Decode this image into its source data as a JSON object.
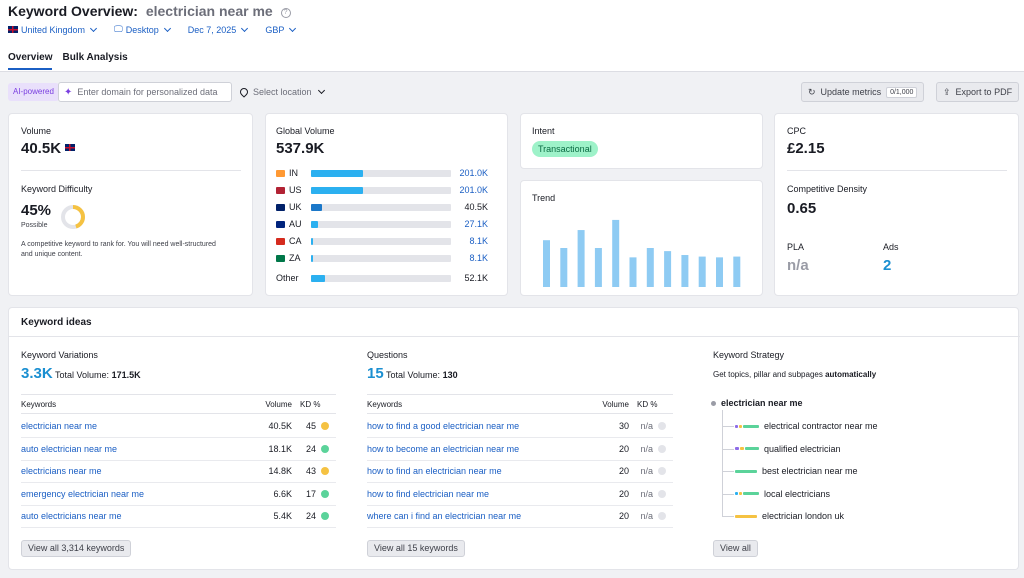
{
  "header": {
    "title": "Keyword Overview:",
    "keyword": "electrician near me",
    "filters": [
      "United Kingdom",
      "Desktop",
      "Dec 7, 2025",
      "GBP"
    ],
    "tabs": [
      "Overview",
      "Bulk Analysis"
    ]
  },
  "toolbar": {
    "ai_badge": "AI-powered",
    "domain_placeholder": "Enter domain for personalized data",
    "location_placeholder": "Select location",
    "update_label": "Update metrics",
    "update_counter": "0/1,000",
    "export_label": "Export to PDF"
  },
  "volume": {
    "label": "Volume",
    "value": "40.5K"
  },
  "difficulty": {
    "label": "Keyword Difficulty",
    "value": "45%",
    "level": "Possible",
    "percent": 45,
    "description": "A competitive keyword to rank for. You will need well-structured and unique content."
  },
  "global_volume": {
    "label": "Global Volume",
    "value": "537.9K",
    "rows": [
      {
        "code": "IN",
        "value": "201.0K",
        "share": 0.37,
        "link": true
      },
      {
        "code": "US",
        "value": "201.0K",
        "share": 0.37,
        "link": true
      },
      {
        "code": "UK",
        "value": "40.5K",
        "share": 0.075,
        "link": false
      },
      {
        "code": "AU",
        "value": "27.1K",
        "share": 0.05,
        "link": true
      },
      {
        "code": "CA",
        "value": "8.1K",
        "share": 0.015,
        "link": true
      },
      {
        "code": "ZA",
        "value": "8.1K",
        "share": 0.015,
        "link": true
      }
    ],
    "other": {
      "code": "Other",
      "value": "52.1K",
      "share": 0.097
    }
  },
  "intent": {
    "label": "Intent",
    "value": "Transactional"
  },
  "trend": {
    "label": "Trend",
    "values": [
      0.6,
      0.5,
      0.73,
      0.5,
      0.86,
      0.38,
      0.5,
      0.46,
      0.41,
      0.39,
      0.38,
      0.39,
      0.5
    ]
  },
  "cpc": {
    "label": "CPC",
    "value": "£2.15"
  },
  "density": {
    "label": "Competitive Density",
    "value": "0.65"
  },
  "pla": {
    "label": "PLA",
    "value": "n/a"
  },
  "ads": {
    "label": "Ads",
    "value": "2"
  },
  "ideas": {
    "title": "Keyword ideas",
    "variations": {
      "title": "Keyword Variations",
      "count": "3.3K",
      "total_label": "Total Volume:",
      "total": "171.5K",
      "headers": [
        "Keywords",
        "Volume",
        "KD %"
      ],
      "rows": [
        {
          "kw": "electrician near me",
          "vol": "40.5K",
          "kd": "45",
          "color": "#f5c242"
        },
        {
          "kw": "auto electrician near me",
          "vol": "18.1K",
          "kd": "24",
          "color": "#5bd39a"
        },
        {
          "kw": "electricians near me",
          "vol": "14.8K",
          "kd": "43",
          "color": "#f5c242"
        },
        {
          "kw": "emergency electrician near me",
          "vol": "6.6K",
          "kd": "17",
          "color": "#5bd39a"
        },
        {
          "kw": "auto electricians near me",
          "vol": "5.4K",
          "kd": "24",
          "color": "#5bd39a"
        }
      ],
      "button": "View all 3,314 keywords"
    },
    "questions": {
      "title": "Questions",
      "count": "15",
      "total_label": "Total Volume:",
      "total": "130",
      "headers": [
        "Keywords",
        "Volume",
        "KD %"
      ],
      "rows": [
        {
          "kw": "how to find a good electrician near me",
          "vol": "30",
          "kd": "n/a"
        },
        {
          "kw": "how to become an electrician near me",
          "vol": "20",
          "kd": "n/a"
        },
        {
          "kw": "how to find an electrician near me",
          "vol": "20",
          "kd": "n/a"
        },
        {
          "kw": "how to find electrician near me",
          "vol": "20",
          "kd": "n/a"
        },
        {
          "kw": "where can i find an electrician near me",
          "vol": "20",
          "kd": "n/a"
        }
      ],
      "button": "View all 15 keywords"
    },
    "strategy": {
      "title": "Keyword Strategy",
      "subtitle": "Get topics, pillar and subpages",
      "subtitle_bold": "automatically",
      "root": "electrician near me",
      "children": [
        "electrical contractor near me",
        "qualified electrician",
        "best electrician near me",
        "local electricians",
        "electrician london uk"
      ],
      "button": "View all"
    }
  },
  "colors": {
    "accent": "#1b5fc4",
    "bar": "#2bb0f0",
    "trend": "#8ecbf3",
    "green": "#5bd39a",
    "yellow": "#f5c242"
  }
}
